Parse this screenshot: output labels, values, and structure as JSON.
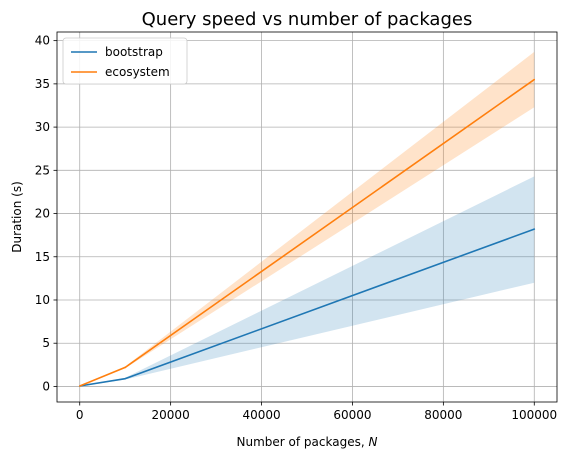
{
  "chart_data": {
    "type": "line",
    "title": "Query speed vs number of packages",
    "xlabel": "Number of packages, ",
    "xlabel_var": "N",
    "ylabel": "Duration (s)",
    "xlim": [
      -5000,
      105000
    ],
    "ylim": [
      -1.8,
      41
    ],
    "xticks": [
      0,
      20000,
      40000,
      60000,
      80000,
      100000
    ],
    "xtick_labels": [
      "0",
      "20000",
      "40000",
      "60000",
      "80000",
      "100000"
    ],
    "yticks": [
      0,
      5,
      10,
      15,
      20,
      25,
      30,
      35,
      40
    ],
    "ytick_labels": [
      "0",
      "5",
      "10",
      "15",
      "20",
      "25",
      "30",
      "35",
      "40"
    ],
    "grid": true,
    "legend_position": "top-left",
    "x": [
      0,
      10000,
      100000
    ],
    "series": [
      {
        "name": "bootstrap",
        "color": "#1f77b4",
        "band_color": "#1f77b4",
        "values": [
          0.05,
          0.9,
          18.2
        ],
        "lower": [
          0.0,
          0.8,
          12.0
        ],
        "upper": [
          0.1,
          1.0,
          24.3
        ]
      },
      {
        "name": "ecosystem",
        "color": "#ff7f0e",
        "band_color": "#ff7f0e",
        "values": [
          0.05,
          2.2,
          35.5
        ],
        "lower": [
          0.0,
          2.1,
          32.3
        ],
        "upper": [
          0.1,
          2.3,
          38.7
        ]
      }
    ]
  }
}
